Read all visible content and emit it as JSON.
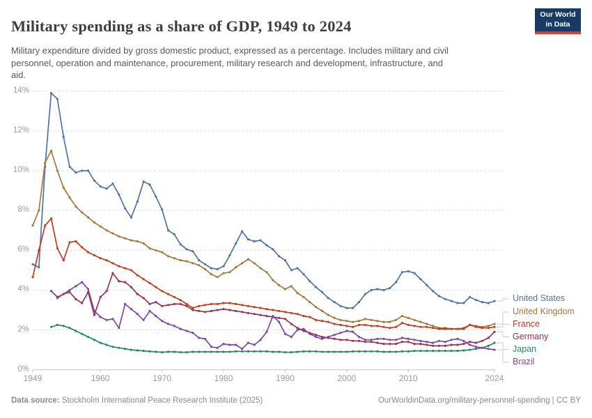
{
  "header": {
    "title": "Military spending as a share of GDP, 1949 to 2024",
    "subtitle": "Military expenditure divided by gross domestic product, expressed as a percentage. Includes military and civil\npersonnel, operation and maintenance, procurement, military research and development, infrastructure, and\naid."
  },
  "logo": {
    "text": "Our World\nin Data"
  },
  "footer": {
    "source_label": "Data source:",
    "source_text": " Stockholm International Peace Research Institute (2025)",
    "right_text": "OurWorldinData.org/military-personnel-spending | CC BY"
  },
  "chart_data": {
    "type": "line",
    "title": "Military spending as a share of GDP, 1949 to 2024",
    "xlabel": "",
    "ylabel": "",
    "xlim": [
      1949,
      2024
    ],
    "ylim": [
      0,
      14
    ],
    "grid": "horizontal-dashed",
    "legend_position": "right-line-end-labels",
    "x_ticks": [
      1949,
      1960,
      1970,
      1980,
      1990,
      2000,
      2010,
      2024
    ],
    "y_ticks": [
      "0%",
      "2%",
      "4%",
      "6%",
      "8%",
      "10%",
      "12%",
      "14%"
    ],
    "unit": "%",
    "series": [
      {
        "name": "United States",
        "color": "#4F73A6",
        "start_year": 1949,
        "values": [
          5.3,
          5.15,
          10.2,
          13.9,
          13.6,
          11.7,
          10.2,
          9.9,
          10.0,
          10.0,
          9.5,
          9.2,
          9.1,
          9.35,
          8.8,
          8.1,
          7.65,
          8.45,
          9.45,
          9.3,
          8.7,
          8.05,
          7.0,
          6.8,
          6.3,
          6.05,
          5.95,
          5.5,
          5.3,
          5.1,
          5.05,
          5.2,
          5.75,
          6.35,
          6.95,
          6.55,
          6.45,
          6.5,
          6.25,
          6.05,
          5.7,
          5.5,
          5.0,
          5.1,
          4.8,
          4.45,
          4.15,
          3.9,
          3.6,
          3.4,
          3.2,
          3.1,
          3.1,
          3.4,
          3.8,
          4.0,
          4.05,
          4.0,
          4.1,
          4.4,
          4.9,
          4.95,
          4.85,
          4.55,
          4.25,
          3.95,
          3.7,
          3.55,
          3.45,
          3.35,
          3.35,
          3.65,
          3.5,
          3.4,
          3.35,
          3.45
        ]
      },
      {
        "name": "United Kingdom",
        "color": "#A5793E",
        "start_year": 1949,
        "values": [
          7.25,
          8.0,
          10.4,
          11.0,
          10.0,
          9.15,
          8.65,
          8.2,
          7.9,
          7.65,
          7.4,
          7.2,
          7.0,
          6.85,
          6.7,
          6.6,
          6.5,
          6.45,
          6.35,
          6.1,
          6.0,
          5.9,
          5.7,
          5.6,
          5.5,
          5.45,
          5.35,
          5.25,
          5.05,
          4.8,
          4.65,
          4.85,
          4.9,
          5.15,
          5.35,
          5.55,
          5.35,
          5.1,
          4.9,
          4.5,
          4.25,
          4.05,
          4.2,
          3.85,
          3.65,
          3.4,
          3.15,
          2.95,
          2.75,
          2.6,
          2.5,
          2.45,
          2.4,
          2.45,
          2.55,
          2.5,
          2.45,
          2.4,
          2.4,
          2.5,
          2.7,
          2.6,
          2.5,
          2.4,
          2.3,
          2.2,
          2.1,
          2.1,
          2.05,
          2.05,
          2.1,
          2.25,
          2.2,
          2.15,
          2.2,
          2.3
        ]
      },
      {
        "name": "France",
        "color": "#C13C21",
        "start_year": 1949,
        "values": [
          4.65,
          6.0,
          7.25,
          7.6,
          6.1,
          5.5,
          6.4,
          6.45,
          6.15,
          5.9,
          5.75,
          5.6,
          5.5,
          5.35,
          5.2,
          5.1,
          5.0,
          4.75,
          4.55,
          4.35,
          4.15,
          3.95,
          3.8,
          3.65,
          3.5,
          3.3,
          3.1,
          3.2,
          3.25,
          3.3,
          3.3,
          3.35,
          3.35,
          3.3,
          3.25,
          3.2,
          3.15,
          3.1,
          3.05,
          3.0,
          2.95,
          2.9,
          2.85,
          2.8,
          2.7,
          2.65,
          2.5,
          2.45,
          2.4,
          2.3,
          2.25,
          2.2,
          2.15,
          2.25,
          2.25,
          2.2,
          2.2,
          2.15,
          2.1,
          2.15,
          2.35,
          2.25,
          2.2,
          2.15,
          2.15,
          2.1,
          2.05,
          2.05,
          2.05,
          2.05,
          2.05,
          2.25,
          2.15,
          2.1,
          2.1,
          2.15
        ]
      },
      {
        "name": "Germany",
        "color": "#97334E",
        "start_year": 1952,
        "values": [
          3.95,
          3.65,
          3.8,
          3.9,
          3.55,
          3.35,
          3.9,
          2.75,
          3.65,
          3.95,
          4.85,
          4.45,
          4.4,
          4.15,
          3.8,
          3.6,
          3.3,
          3.4,
          3.2,
          3.25,
          3.3,
          3.3,
          3.2,
          3.0,
          2.95,
          2.9,
          2.95,
          3.0,
          3.05,
          3.0,
          2.95,
          2.9,
          2.85,
          2.8,
          2.75,
          2.7,
          2.65,
          2.6,
          2.55,
          2.3,
          2.1,
          1.95,
          1.85,
          1.75,
          1.65,
          1.6,
          1.55,
          1.5,
          1.5,
          1.45,
          1.45,
          1.4,
          1.4,
          1.35,
          1.3,
          1.3,
          1.3,
          1.4,
          1.4,
          1.3,
          1.3,
          1.25,
          1.2,
          1.2,
          1.2,
          1.25,
          1.25,
          1.3,
          1.4,
          1.35,
          1.45,
          1.6,
          1.9
        ]
      },
      {
        "name": "Japan",
        "color": "#278963",
        "start_year": 1952,
        "values": [
          2.15,
          2.25,
          2.2,
          2.1,
          1.95,
          1.8,
          1.65,
          1.5,
          1.35,
          1.25,
          1.15,
          1.1,
          1.05,
          1.0,
          0.97,
          0.95,
          0.92,
          0.9,
          0.88,
          0.9,
          0.9,
          0.88,
          0.88,
          0.9,
          0.9,
          0.9,
          0.9,
          0.9,
          0.9,
          0.9,
          0.92,
          0.92,
          0.92,
          0.92,
          0.92,
          0.92,
          0.9,
          0.9,
          0.88,
          0.88,
          0.9,
          0.92,
          0.92,
          0.92,
          0.9,
          0.9,
          0.9,
          0.9,
          0.9,
          0.92,
          0.92,
          0.92,
          0.92,
          0.92,
          0.9,
          0.9,
          0.9,
          0.92,
          0.92,
          0.95,
          0.95,
          0.95,
          0.95,
          0.95,
          0.95,
          0.95,
          0.95,
          0.97,
          1.0,
          1.05,
          1.1,
          1.2,
          1.35
        ]
      },
      {
        "name": "Brazil",
        "color": "#7C46AB",
        "start_year": 1953,
        "values": [
          3.6,
          3.8,
          4.0,
          4.2,
          4.4,
          4.05,
          2.95,
          2.65,
          2.5,
          2.55,
          2.1,
          3.3,
          3.05,
          2.8,
          2.5,
          2.95,
          2.7,
          2.45,
          2.3,
          2.2,
          2.05,
          1.95,
          1.85,
          1.6,
          1.55,
          1.15,
          1.1,
          1.3,
          1.25,
          1.25,
          1.05,
          1.35,
          1.25,
          1.5,
          1.9,
          2.7,
          2.4,
          1.8,
          1.65,
          2.0,
          2.05,
          1.8,
          1.65,
          1.55,
          1.65,
          1.75,
          1.85,
          1.95,
          1.9,
          1.65,
          1.5,
          1.5,
          1.55,
          1.55,
          1.5,
          1.5,
          1.6,
          1.55,
          1.5,
          1.45,
          1.4,
          1.35,
          1.45,
          1.4,
          1.5,
          1.55,
          1.45,
          1.25,
          1.15,
          1.1,
          1.05,
          1.0
        ]
      }
    ]
  }
}
